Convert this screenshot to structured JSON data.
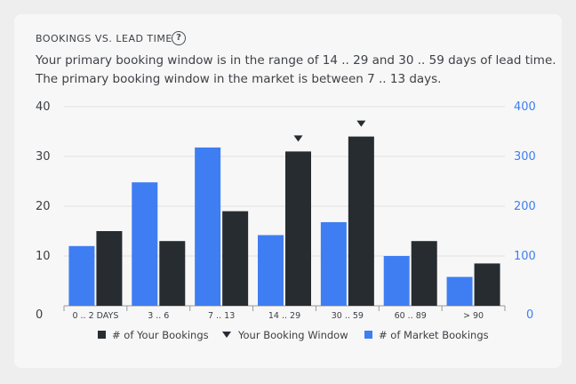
{
  "header": {
    "title": "BOOKINGS VS. LEAD TIME",
    "help_icon": "?",
    "description_line1": "Your primary booking window is in the range of 14 .. 29 and 30 .. 59 days of lead time.",
    "description_line2": "The primary booking window in the market is between 7 .. 13 days."
  },
  "colors": {
    "your_bookings": "#272c31",
    "market_bookings": "#3f7ef2",
    "axis_left": "#3b3f44",
    "axis_right": "#3f7ef2",
    "grid": "#e1e1e1"
  },
  "chart_data": {
    "type": "bar",
    "categories": [
      "0 .. 2 DAYS",
      "3 .. 6",
      "7 .. 13",
      "14 .. 29",
      "30 .. 59",
      "60 .. 89",
      "> 90"
    ],
    "series": [
      {
        "name": "# of Market Bookings",
        "axis": "right",
        "values": [
          120,
          248,
          318,
          142,
          168,
          100,
          58
        ]
      },
      {
        "name": "# of Your Bookings",
        "axis": "left",
        "values": [
          15,
          13,
          19,
          31,
          34,
          13,
          8.5
        ]
      }
    ],
    "booking_window": {
      "name": "Your Booking Window",
      "categories": [
        "14 .. 29",
        "30 .. 59"
      ]
    },
    "ylim_left": [
      0,
      40
    ],
    "yticks_left": [
      "0",
      "10",
      "20",
      "30",
      "40"
    ],
    "ylim_right": [
      0,
      400
    ],
    "yticks_right": [
      "0",
      "100",
      "200",
      "300",
      "400"
    ],
    "grid": true,
    "legend": {
      "placement": "bottom",
      "items": [
        "# of Your Bookings",
        "Your Booking Window",
        "# of Market Bookings"
      ]
    }
  }
}
